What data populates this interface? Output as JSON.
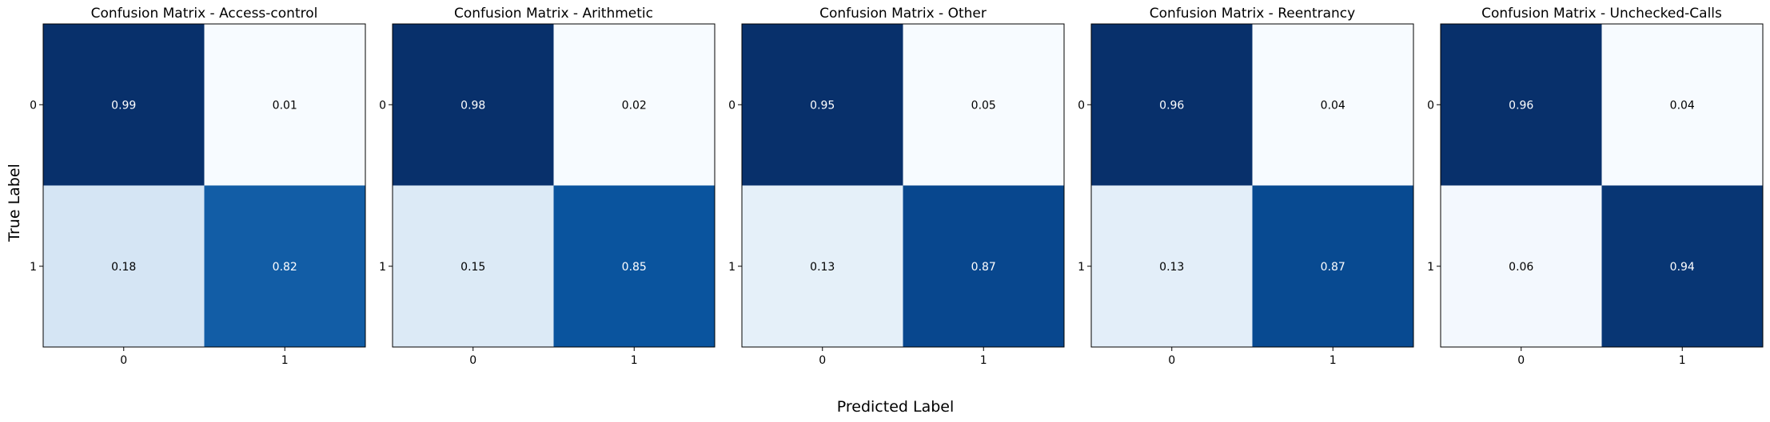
{
  "figure": {
    "ylabel": "True Label",
    "xlabel": "Predicted Label"
  },
  "colormap": {
    "name": "Blues",
    "low": "#f7fbff",
    "high": "#08306b",
    "text_dark": "#000000",
    "text_light": "#ffffff"
  },
  "chart_data": [
    {
      "type": "heatmap",
      "title": "Confusion Matrix - Access-control",
      "x_ticks": [
        "0",
        "1"
      ],
      "y_ticks": [
        "0",
        "1"
      ],
      "values": [
        [
          0.99,
          0.01
        ],
        [
          0.18,
          0.82
        ]
      ],
      "labels": [
        [
          "0.99",
          "0.01"
        ],
        [
          "0.18",
          "0.82"
        ]
      ]
    },
    {
      "type": "heatmap",
      "title": "Confusion Matrix - Arithmetic",
      "x_ticks": [
        "0",
        "1"
      ],
      "y_ticks": [
        "0",
        "1"
      ],
      "values": [
        [
          0.98,
          0.02
        ],
        [
          0.15,
          0.85
        ]
      ],
      "labels": [
        [
          "0.98",
          "0.02"
        ],
        [
          "0.15",
          "0.85"
        ]
      ]
    },
    {
      "type": "heatmap",
      "title": "Confusion Matrix - Other",
      "x_ticks": [
        "0",
        "1"
      ],
      "y_ticks": [
        "0",
        "1"
      ],
      "values": [
        [
          0.95,
          0.05
        ],
        [
          0.13,
          0.87
        ]
      ],
      "labels": [
        [
          "0.95",
          "0.05"
        ],
        [
          "0.13",
          "0.87"
        ]
      ]
    },
    {
      "type": "heatmap",
      "title": "Confusion Matrix - Reentrancy",
      "x_ticks": [
        "0",
        "1"
      ],
      "y_ticks": [
        "0",
        "1"
      ],
      "values": [
        [
          0.96,
          0.04
        ],
        [
          0.13,
          0.87
        ]
      ],
      "labels": [
        [
          "0.96",
          "0.04"
        ],
        [
          "0.13",
          "0.87"
        ]
      ]
    },
    {
      "type": "heatmap",
      "title": "Confusion Matrix - Unchecked-Calls",
      "x_ticks": [
        "0",
        "1"
      ],
      "y_ticks": [
        "0",
        "1"
      ],
      "values": [
        [
          0.96,
          0.04
        ],
        [
          0.06,
          0.94
        ]
      ],
      "labels": [
        [
          "0.96",
          "0.04"
        ],
        [
          "0.06",
          "0.94"
        ]
      ]
    }
  ]
}
